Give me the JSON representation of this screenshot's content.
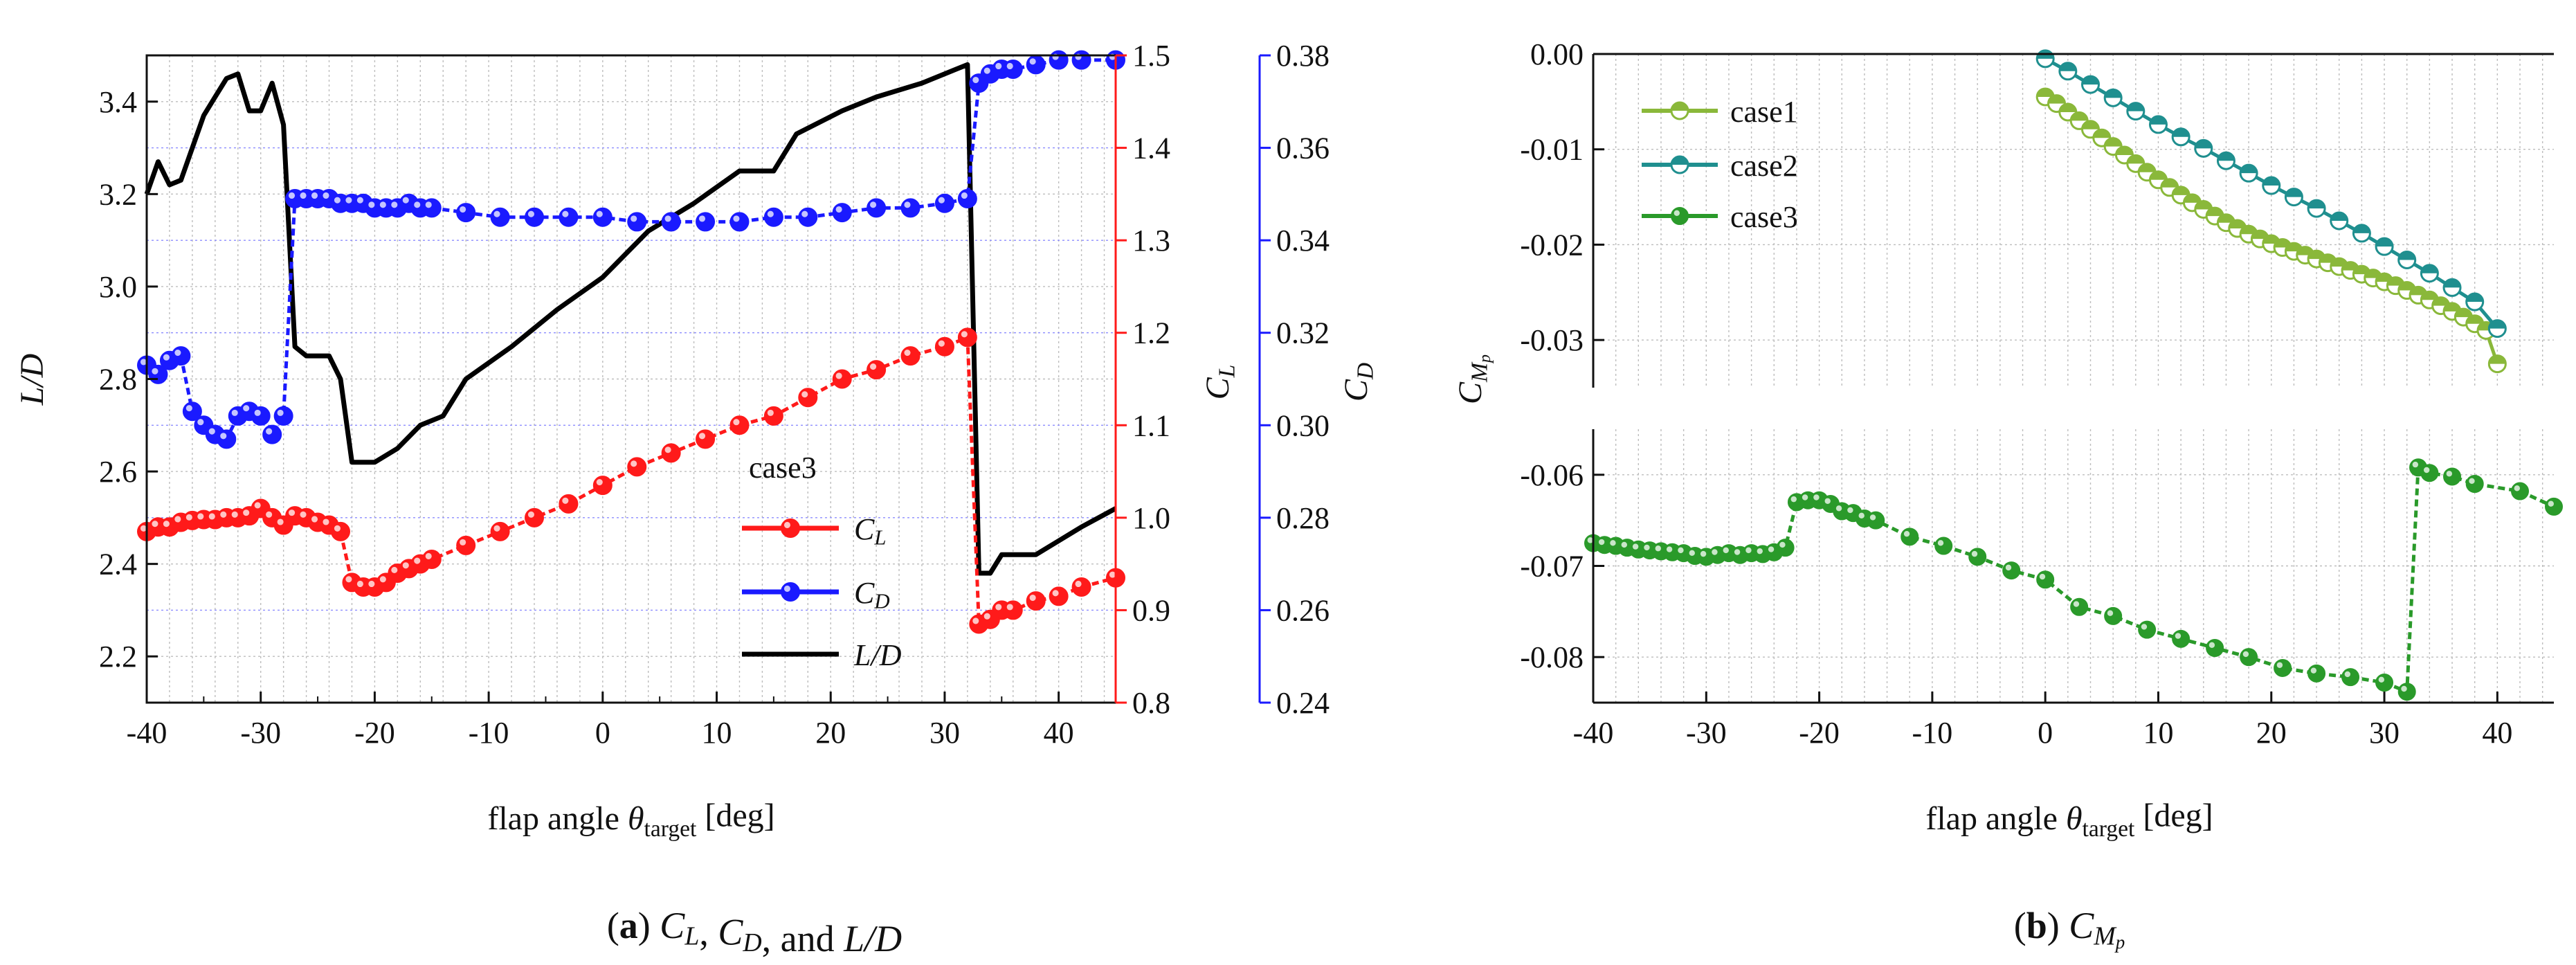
{
  "colors": {
    "cl": "#ff1a1a",
    "cd": "#1a1aff",
    "ld": "#000000",
    "case1": "#8ab83a",
    "case2": "#1f8f8f",
    "case3": "#2a9a2a",
    "grid": "#bdbdbd",
    "gridBlue": "#8c8cff"
  },
  "chart_data": [
    {
      "id": "a",
      "type": "line",
      "caption": {
        "label": "a",
        "text": "C_L, C_D, and L/D"
      },
      "xlabel": "flap angle θ_target [deg]",
      "xlim": [
        -40,
        45
      ],
      "xticks": [
        "-40",
        "-30",
        "-20",
        "-10",
        "0",
        "10",
        "20",
        "30",
        "40"
      ],
      "legend": {
        "title": "case3",
        "entries": [
          "C_L",
          "C_D",
          "L/D"
        ]
      },
      "axes": {
        "ld": {
          "label": "L/D",
          "lim": [
            2.1,
            3.5
          ],
          "ticks": [
            "2.2",
            "2.4",
            "2.6",
            "2.8",
            "3.0",
            "3.2",
            "3.4"
          ]
        },
        "cl": {
          "label": "C_L",
          "lim": [
            0.8,
            1.5
          ],
          "ticks": [
            "0.8",
            "0.9",
            "1.0",
            "1.1",
            "1.2",
            "1.3",
            "1.4",
            "1.5"
          ]
        },
        "cd": {
          "label": "C_D",
          "lim": [
            0.24,
            0.38
          ],
          "ticks": [
            "0.24",
            "0.26",
            "0.28",
            "0.30",
            "0.32",
            "0.34",
            "0.36",
            "0.38"
          ]
        }
      },
      "series": [
        {
          "name": "L/D",
          "axis": "ld",
          "markers": false,
          "x": [
            -40,
            -39,
            -38,
            -37,
            -36,
            -35,
            -34,
            -33,
            -32,
            -31,
            -30,
            -29,
            -28,
            -27,
            -26,
            -25,
            -24,
            -23,
            -22,
            -21,
            -20,
            -18,
            -16,
            -14,
            -12,
            -8,
            -4,
            0,
            4,
            8,
            12,
            15,
            17,
            21,
            24,
            28,
            31,
            32,
            33,
            34,
            35,
            36,
            38,
            42,
            45
          ],
          "y": [
            3.2,
            3.27,
            3.22,
            3.23,
            3.3,
            3.37,
            3.41,
            3.45,
            3.46,
            3.38,
            3.38,
            3.44,
            3.35,
            2.87,
            2.85,
            2.85,
            2.85,
            2.8,
            2.62,
            2.62,
            2.62,
            2.65,
            2.7,
            2.72,
            2.8,
            2.87,
            2.95,
            3.02,
            3.12,
            3.18,
            3.25,
            3.25,
            3.33,
            3.38,
            3.41,
            3.44,
            3.47,
            3.48,
            2.38,
            2.38,
            2.42,
            2.42,
            2.42,
            2.48,
            2.52
          ]
        },
        {
          "name": "C_D",
          "axis": "cd",
          "markers": true,
          "x": [
            -40,
            -39,
            -38,
            -37,
            -36,
            -35,
            -34,
            -33,
            -32,
            -31,
            -30,
            -29,
            -28,
            -27,
            -26,
            -25,
            -24,
            -23,
            -22,
            -21,
            -20,
            -19,
            -18,
            -17,
            -16,
            -15,
            -12,
            -9,
            -6,
            -3,
            0,
            3,
            6,
            9,
            12,
            15,
            18,
            21,
            24,
            27,
            30,
            32,
            33,
            34,
            35,
            36,
            38,
            40,
            42,
            45
          ],
          "y": [
            0.313,
            0.311,
            0.314,
            0.315,
            0.303,
            0.3,
            0.298,
            0.297,
            0.302,
            0.303,
            0.302,
            0.298,
            0.302,
            0.349,
            0.349,
            0.349,
            0.349,
            0.348,
            0.348,
            0.348,
            0.347,
            0.347,
            0.347,
            0.348,
            0.347,
            0.347,
            0.346,
            0.345,
            0.345,
            0.345,
            0.345,
            0.344,
            0.344,
            0.344,
            0.344,
            0.345,
            0.345,
            0.346,
            0.347,
            0.347,
            0.348,
            0.349,
            0.374,
            0.376,
            0.377,
            0.377,
            0.378,
            0.379,
            0.379,
            0.379
          ]
        },
        {
          "name": "C_L",
          "axis": "cl",
          "markers": true,
          "x": [
            -40,
            -39,
            -38,
            -37,
            -36,
            -35,
            -34,
            -33,
            -32,
            -31,
            -30,
            -29,
            -28,
            -27,
            -26,
            -25,
            -24,
            -23,
            -22,
            -21,
            -20,
            -19,
            -18,
            -17,
            -16,
            -15,
            -12,
            -9,
            -6,
            -3,
            0,
            3,
            6,
            9,
            12,
            15,
            18,
            21,
            24,
            27,
            30,
            32,
            33,
            34,
            35,
            36,
            38,
            40,
            42,
            45
          ],
          "y": [
            0.985,
            0.99,
            0.99,
            0.995,
            0.997,
            0.998,
            0.998,
            1.0,
            1.0,
            1.002,
            1.01,
            1.0,
            0.992,
            1.002,
            1.0,
            0.995,
            0.992,
            0.985,
            0.93,
            0.925,
            0.925,
            0.93,
            0.94,
            0.945,
            0.95,
            0.955,
            0.97,
            0.985,
            1.0,
            1.015,
            1.035,
            1.055,
            1.07,
            1.085,
            1.1,
            1.11,
            1.13,
            1.15,
            1.16,
            1.175,
            1.185,
            1.195,
            0.885,
            0.89,
            0.9,
            0.9,
            0.91,
            0.915,
            0.925,
            0.935
          ]
        }
      ]
    },
    {
      "id": "b",
      "type": "line",
      "caption": {
        "label": "b",
        "text": "C_{M_p}"
      },
      "xlabel": "flap angle θ_target [deg]",
      "ylabel": "C_{M_p}",
      "xlim": [
        -40,
        45
      ],
      "xticks": [
        "-40",
        "-30",
        "-20",
        "-10",
        "0",
        "10",
        "20",
        "30",
        "40"
      ],
      "ylim_upper": [
        -0.035,
        0.0
      ],
      "yticks_upper": [
        "0.00",
        "-0.01",
        "-0.02",
        "-0.03"
      ],
      "ylim_lower": [
        -0.085,
        -0.055
      ],
      "yticks_lower": [
        "-0.06",
        "-0.07",
        "-0.08"
      ],
      "legend": {
        "entries": [
          "case1",
          "case2",
          "case3"
        ]
      },
      "series": [
        {
          "name": "case1",
          "panel": "upper",
          "hollow": true,
          "x": [
            0,
            1,
            2,
            3,
            4,
            5,
            6,
            7,
            8,
            9,
            10,
            11,
            12,
            13,
            14,
            15,
            16,
            17,
            18,
            19,
            20,
            21,
            22,
            23,
            24,
            25,
            26,
            27,
            28,
            29,
            30,
            31,
            32,
            33,
            34,
            35,
            36,
            37,
            38,
            39,
            40
          ],
          "y": [
            -0.0045,
            -0.0052,
            -0.0061,
            -0.007,
            -0.0079,
            -0.0088,
            -0.0097,
            -0.0106,
            -0.0115,
            -0.0124,
            -0.0132,
            -0.014,
            -0.0148,
            -0.0156,
            -0.0163,
            -0.017,
            -0.0177,
            -0.0183,
            -0.0189,
            -0.0194,
            -0.0199,
            -0.0203,
            -0.0207,
            -0.0211,
            -0.0215,
            -0.0219,
            -0.0223,
            -0.0227,
            -0.0231,
            -0.0235,
            -0.0239,
            -0.0243,
            -0.0248,
            -0.0253,
            -0.0258,
            -0.0264,
            -0.027,
            -0.0276,
            -0.0283,
            -0.029,
            -0.0325
          ]
        },
        {
          "name": "case2",
          "panel": "upper",
          "hollow": true,
          "x": [
            0,
            2,
            4,
            6,
            8,
            10,
            12,
            14,
            16,
            18,
            20,
            22,
            24,
            26,
            28,
            30,
            32,
            34,
            36,
            38,
            40
          ],
          "y": [
            -0.0005,
            -0.0018,
            -0.0032,
            -0.0046,
            -0.006,
            -0.0074,
            -0.0087,
            -0.0099,
            -0.0112,
            -0.0125,
            -0.0138,
            -0.015,
            -0.0162,
            -0.0175,
            -0.0188,
            -0.0202,
            -0.0216,
            -0.023,
            -0.0245,
            -0.026,
            -0.0288
          ]
        },
        {
          "name": "case3",
          "panel": "lower",
          "hollow": false,
          "x": [
            -40,
            -39,
            -38,
            -37,
            -36,
            -35,
            -34,
            -33,
            -32,
            -31,
            -30,
            -29,
            -28,
            -27,
            -26,
            -25,
            -24,
            -23,
            -22,
            -21,
            -20,
            -19,
            -18,
            -17,
            -16,
            -15,
            -12,
            -9,
            -6,
            -3,
            0,
            3,
            6,
            9,
            12,
            15,
            18,
            21,
            24,
            27,
            30,
            32,
            33,
            34,
            36,
            38,
            42,
            45
          ],
          "y": [
            -0.0675,
            -0.0677,
            -0.0678,
            -0.068,
            -0.0682,
            -0.0683,
            -0.0684,
            -0.0685,
            -0.0686,
            -0.0689,
            -0.069,
            -0.0688,
            -0.0686,
            -0.0688,
            -0.0686,
            -0.0687,
            -0.0685,
            -0.068,
            -0.063,
            -0.0628,
            -0.0628,
            -0.0632,
            -0.064,
            -0.0642,
            -0.0648,
            -0.065,
            -0.0668,
            -0.0678,
            -0.069,
            -0.0705,
            -0.0715,
            -0.0745,
            -0.0755,
            -0.077,
            -0.078,
            -0.079,
            -0.08,
            -0.0812,
            -0.0818,
            -0.0822,
            -0.0828,
            -0.0838,
            -0.0592,
            -0.0598,
            -0.0602,
            -0.061,
            -0.0618,
            -0.0635
          ]
        }
      ]
    }
  ]
}
